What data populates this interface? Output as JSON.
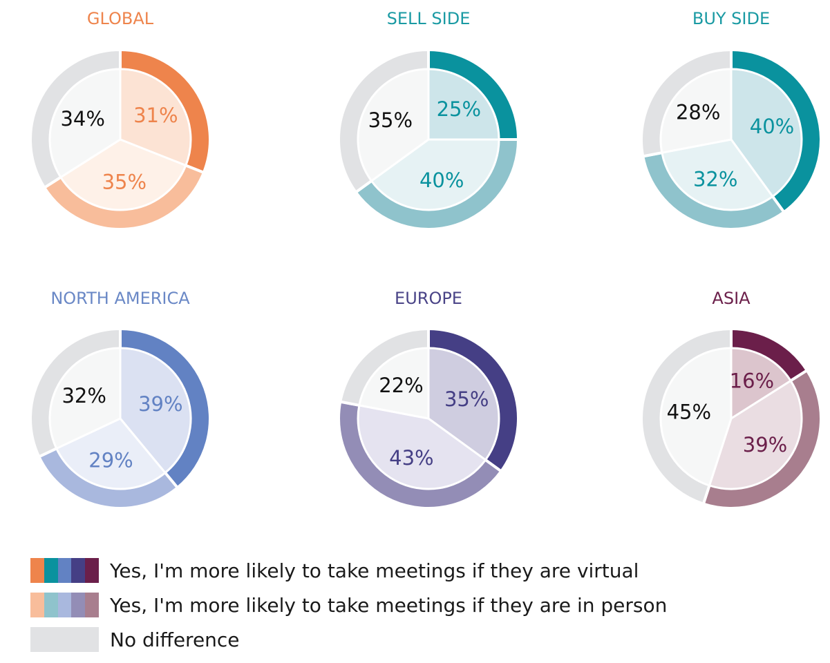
{
  "chart_data": [
    {
      "type": "pie",
      "title": "GLOBAL",
      "title_color": "#ee844c",
      "series": [
        {
          "name": "Yes, I'm more likely to take meetings if they are virtual",
          "value": 31,
          "label": "31%",
          "color": "#ee844c",
          "inner_color": "#fce3d4",
          "label_color": "#ee844c"
        },
        {
          "name": "Yes, I'm more likely to take meetings if they are in person",
          "value": 35,
          "label": "35%",
          "color": "#f8bd9b",
          "inner_color": "#fef1e8",
          "label_color": "#ee844c"
        },
        {
          "name": "No difference",
          "value": 34,
          "label": "34%",
          "color": "#e1e2e4",
          "inner_color": "#f6f7f7",
          "label_color": "#111111"
        }
      ]
    },
    {
      "type": "pie",
      "title": "SELL SIDE",
      "title_color": "#1a9aa3",
      "series": [
        {
          "name": "Yes, I'm more likely to take meetings if they are virtual",
          "value": 25,
          "label": "25%",
          "color": "#0a929e",
          "inner_color": "#cde5ea",
          "label_color": "#0a929e"
        },
        {
          "name": "Yes, I'm more likely to take meetings if they are in person",
          "value": 40,
          "label": "40%",
          "color": "#8fc3cc",
          "inner_color": "#e6f2f4",
          "label_color": "#0a929e"
        },
        {
          "name": "No difference",
          "value": 35,
          "label": "35%",
          "color": "#e1e2e4",
          "inner_color": "#f6f7f7",
          "label_color": "#111111"
        }
      ]
    },
    {
      "type": "pie",
      "title": "BUY SIDE",
      "title_color": "#1a9aa3",
      "series": [
        {
          "name": "Yes, I'm more likely to take meetings if they are virtual",
          "value": 40,
          "label": "40%",
          "color": "#0a929e",
          "inner_color": "#cde5ea",
          "label_color": "#0a929e"
        },
        {
          "name": "Yes, I'm more likely to take meetings if they are in person",
          "value": 32,
          "label": "32%",
          "color": "#8fc3cc",
          "inner_color": "#e6f2f4",
          "label_color": "#0a929e"
        },
        {
          "name": "No difference",
          "value": 28,
          "label": "28%",
          "color": "#e1e2e4",
          "inner_color": "#f6f7f7",
          "label_color": "#111111"
        }
      ]
    },
    {
      "type": "pie",
      "title": "NORTH AMERICA",
      "title_color": "#6a88c6",
      "series": [
        {
          "name": "Yes, I'm more likely to take meetings if they are virtual",
          "value": 39,
          "label": "39%",
          "color": "#6282c3",
          "inner_color": "#dbe1f2",
          "label_color": "#6282c3"
        },
        {
          "name": "Yes, I'm more likely to take meetings if they are in person",
          "value": 29,
          "label": "29%",
          "color": "#a9b8de",
          "inner_color": "#eaeef8",
          "label_color": "#6282c3"
        },
        {
          "name": "No difference",
          "value": 32,
          "label": "32%",
          "color": "#e1e2e4",
          "inner_color": "#f6f7f7",
          "label_color": "#111111"
        }
      ]
    },
    {
      "type": "pie",
      "title": "EUROPE",
      "title_color": "#4a4487",
      "series": [
        {
          "name": "Yes, I'm more likely to take meetings if they are virtual",
          "value": 35,
          "label": "35%",
          "color": "#453f85",
          "inner_color": "#cfcde0",
          "label_color": "#453f85"
        },
        {
          "name": "Yes, I'm more likely to take meetings if they are in person",
          "value": 43,
          "label": "43%",
          "color": "#938db6",
          "inner_color": "#e5e3f0",
          "label_color": "#453f85"
        },
        {
          "name": "No difference",
          "value": 22,
          "label": "22%",
          "color": "#e1e2e4",
          "inner_color": "#f6f7f7",
          "label_color": "#111111"
        }
      ]
    },
    {
      "type": "pie",
      "title": "ASIA",
      "title_color": "#6b1f4a",
      "series": [
        {
          "name": "Yes, I'm more likely to take meetings if they are virtual",
          "value": 16,
          "label": "16%",
          "color": "#6b1f4a",
          "inner_color": "#dcc5cd",
          "label_color": "#6b1f4a"
        },
        {
          "name": "Yes, I'm more likely to take meetings if they are in person",
          "value": 39,
          "label": "39%",
          "color": "#a87e8e",
          "inner_color": "#eadde2",
          "label_color": "#6b1f4a"
        },
        {
          "name": "No difference",
          "value": 45,
          "label": "45%",
          "color": "#e1e2e4",
          "inner_color": "#f6f7f7",
          "label_color": "#111111"
        }
      ]
    }
  ],
  "legend": {
    "items": [
      {
        "label": "Yes, I'm more likely to take meetings if they are virtual",
        "colors": [
          "#ee844c",
          "#0a929e",
          "#6282c3",
          "#453f85",
          "#6b1f4a"
        ]
      },
      {
        "label": "Yes, I'm more likely to take meetings if they are in person",
        "colors": [
          "#f8bd9b",
          "#8fc3cc",
          "#a9b8de",
          "#938db6",
          "#a87e8e"
        ]
      },
      {
        "label": "No difference",
        "colors": [
          "#e1e2e4"
        ]
      }
    ]
  }
}
